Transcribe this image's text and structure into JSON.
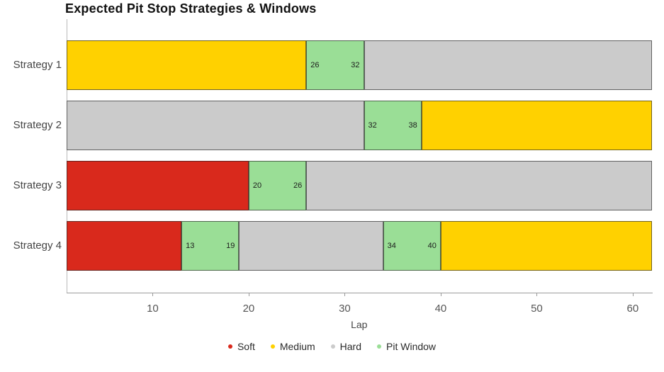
{
  "chart_data": {
    "type": "bar",
    "orientation": "horizontal",
    "stacked": true,
    "title": "Expected Pit Stop Strategies & Windows",
    "xlabel": "Lap",
    "xlim": [
      1,
      62
    ],
    "xticks": [
      10,
      20,
      30,
      40,
      50,
      60
    ],
    "grid": false,
    "legend_position": "bottom",
    "categories": [
      "Strategy 1",
      "Strategy 2",
      "Strategy 3",
      "Strategy 4"
    ],
    "series_colors": {
      "Soft": "#d9291c",
      "Medium": "#ffd100",
      "Hard": "#cbcbcb",
      "Pit Window": "#9ade96"
    },
    "legend": [
      {
        "label": "Soft",
        "color": "#d9291c"
      },
      {
        "label": "Medium",
        "color": "#ffd100"
      },
      {
        "label": "Hard",
        "color": "#cbcbcb"
      },
      {
        "label": "Pit Window",
        "color": "#9ade96"
      }
    ],
    "rows": [
      {
        "category": "Strategy 1",
        "segments": [
          {
            "series": "Medium",
            "start": 1,
            "end": 26
          },
          {
            "series": "Pit Window",
            "start": 26,
            "end": 32,
            "labels": [
              "26",
              "32"
            ]
          },
          {
            "series": "Hard",
            "start": 32,
            "end": 62
          }
        ]
      },
      {
        "category": "Strategy 2",
        "segments": [
          {
            "series": "Hard",
            "start": 1,
            "end": 32
          },
          {
            "series": "Pit Window",
            "start": 32,
            "end": 38,
            "labels": [
              "32",
              "38"
            ]
          },
          {
            "series": "Medium",
            "start": 38,
            "end": 62
          }
        ]
      },
      {
        "category": "Strategy 3",
        "segments": [
          {
            "series": "Soft",
            "start": 1,
            "end": 20
          },
          {
            "series": "Pit Window",
            "start": 20,
            "end": 26,
            "labels": [
              "20",
              "26"
            ]
          },
          {
            "series": "Hard",
            "start": 26,
            "end": 62
          }
        ]
      },
      {
        "category": "Strategy 4",
        "segments": [
          {
            "series": "Soft",
            "start": 1,
            "end": 13
          },
          {
            "series": "Pit Window",
            "start": 13,
            "end": 19,
            "labels": [
              "13",
              "19"
            ]
          },
          {
            "series": "Hard",
            "start": 19,
            "end": 34
          },
          {
            "series": "Pit Window",
            "start": 34,
            "end": 40,
            "labels": [
              "34",
              "40"
            ]
          },
          {
            "series": "Medium",
            "start": 40,
            "end": 62
          }
        ]
      }
    ]
  }
}
